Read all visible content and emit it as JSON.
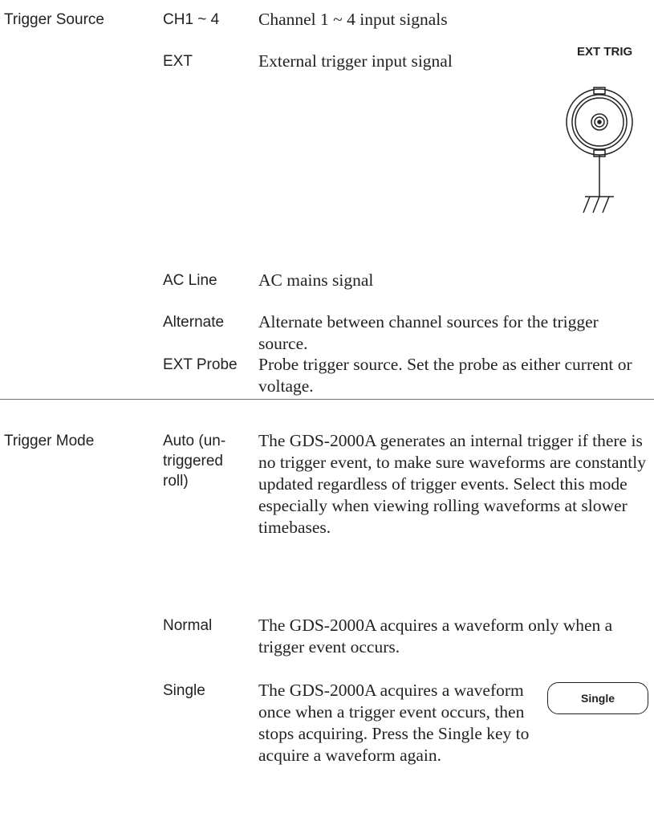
{
  "sections": [
    {
      "label": "Trigger Source",
      "items": [
        {
          "option": "CH1 ~ 4",
          "description": "Channel 1 ~ 4 input signals"
        },
        {
          "option": "EXT",
          "description": "External trigger input signal",
          "figure_label": "EXT TRIG"
        },
        {
          "option": "AC Line",
          "description": "AC mains signal"
        },
        {
          "option": "Alternate",
          "description": "Alternate between channel sources for the trigger source."
        },
        {
          "option": "EXT Probe",
          "description": "Probe trigger source. Set the probe as either current or voltage."
        }
      ]
    },
    {
      "label": "Trigger Mode",
      "items": [
        {
          "option": "Auto (un-triggered roll)",
          "description": "The GDS-2000A generates an internal trigger if there is no trigger event, to make sure waveforms are constantly updated regardless of trigger events. Select this mode especially when viewing rolling waveforms at slower timebases."
        },
        {
          "option": "Normal",
          "description": "The GDS-2000A acquires a waveform only when a trigger event occurs."
        },
        {
          "option": "Single",
          "description": "The GDS-2000A acquires a waveform once when a trigger event occurs, then stops acquiring. Press the Single key to acquire a waveform again.",
          "button_label": "Single"
        }
      ]
    }
  ]
}
